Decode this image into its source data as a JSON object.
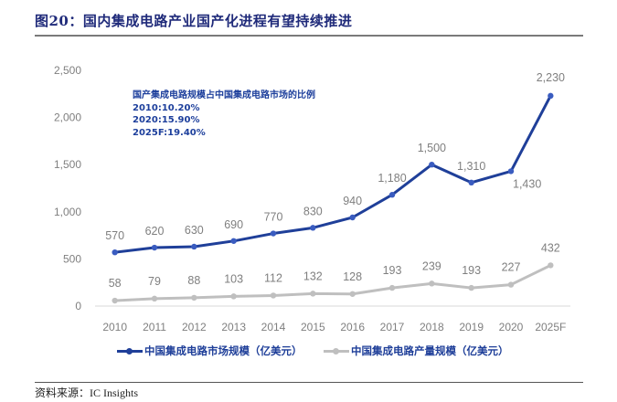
{
  "figure": {
    "title": "图20：国内集成电路产业国产化进程有望持续推进",
    "source": "资料来源：IC Insights"
  },
  "annotation": {
    "lines": [
      "国产集成电路规模占中国集成电路市场的比例",
      "2010:10.20%",
      "2020:15.90%",
      "2025F:19.40%"
    ]
  },
  "chart_data": {
    "type": "line",
    "title": "",
    "xlabel": "",
    "ylabel": "",
    "categories": [
      "2010",
      "2011",
      "2012",
      "2013",
      "2014",
      "2015",
      "2016",
      "2017",
      "2018",
      "2019",
      "2020",
      "2025F"
    ],
    "ylim": [
      0,
      2500
    ],
    "yticks": [
      0,
      500,
      1000,
      1500,
      2000,
      2500
    ],
    "ytick_labels": [
      "0",
      "500",
      "1,000",
      "1,500",
      "2,000",
      "2,500"
    ],
    "grid": false,
    "legend_position": "bottom",
    "series": [
      {
        "name": "中国集成电路市场规模（亿美元）",
        "color": "#1f3f99",
        "values": [
          570,
          620,
          630,
          690,
          770,
          830,
          940,
          1180,
          1500,
          1310,
          1430,
          2230
        ],
        "labels": [
          "570",
          "620",
          "630",
          "690",
          "770",
          "830",
          "940",
          "1,180",
          "1,500",
          "1,310",
          "1,430",
          "2,230"
        ]
      },
      {
        "name": "中国集成电路产量规模（亿美元）",
        "color": "#bfbfbf",
        "values": [
          58,
          79,
          88,
          103,
          112,
          132,
          128,
          193,
          239,
          193,
          227,
          432
        ],
        "labels": [
          "58",
          "79",
          "88",
          "103",
          "112",
          "132",
          "128",
          "193",
          "239",
          "193",
          "227",
          "432"
        ]
      }
    ]
  }
}
